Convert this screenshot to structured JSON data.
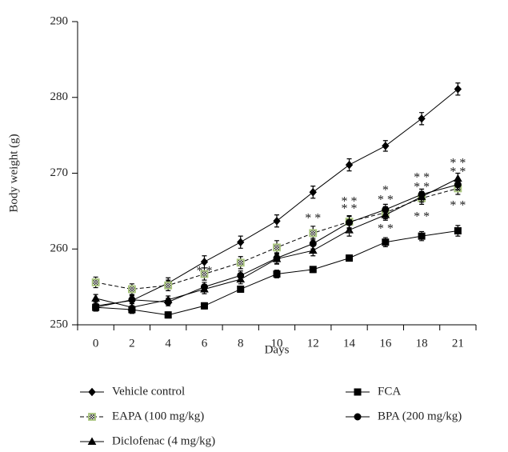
{
  "chart_data": {
    "type": "line",
    "x_label": "Days",
    "y_label": "Body weight (g)",
    "categories": [
      "0",
      "2",
      "4",
      "6",
      "8",
      "10",
      "12",
      "14",
      "16",
      "18",
      "21"
    ],
    "ylim": [
      250,
      290
    ],
    "yticks": [
      250,
      260,
      270,
      280,
      290
    ],
    "series": [
      {
        "name": "Vehicle control",
        "color": "#000000",
        "marker": "diamond",
        "marker_color": "#000000",
        "line_style": "solid",
        "values": [
          252.5,
          253.2,
          255.5,
          258.3,
          260.9,
          263.7,
          267.5,
          271.1,
          273.6,
          277.2,
          281.1
        ],
        "errors": [
          0.7,
          0.7,
          0.7,
          0.8,
          0.8,
          0.8,
          0.8,
          0.8,
          0.7,
          0.8,
          0.8
        ]
      },
      {
        "name": "EAPA (100 mg/kg)",
        "color": "#000000",
        "marker": "square-hatched",
        "marker_color": "#a8c47c",
        "line_style": "dashed",
        "values": [
          255.6,
          254.7,
          255.2,
          256.7,
          258.2,
          260.2,
          262.1,
          263.6,
          264.8,
          266.7,
          268.0
        ],
        "errors": [
          0.7,
          0.7,
          0.7,
          0.8,
          0.8,
          0.9,
          0.9,
          0.8,
          0.8,
          0.8,
          0.8
        ]
      },
      {
        "name": "Diclofenac (4 mg/kg)",
        "color": "#000000",
        "marker": "triangle",
        "marker_color": "#000000",
        "line_style": "solid",
        "values": [
          253.5,
          252.3,
          253.3,
          254.7,
          256.0,
          258.7,
          259.8,
          262.5,
          264.5,
          266.9,
          269.3
        ],
        "errors": [
          0.5,
          0.5,
          0.5,
          0.6,
          0.6,
          0.7,
          0.7,
          0.8,
          0.7,
          0.7,
          0.7
        ]
      },
      {
        "name": "FCA",
        "color": "#000000",
        "marker": "square",
        "marker_color": "#000000",
        "line_style": "solid",
        "values": [
          252.3,
          252.0,
          251.3,
          252.5,
          254.7,
          256.7,
          257.3,
          258.8,
          260.9,
          261.7,
          262.4
        ],
        "errors": [
          0.5,
          0.5,
          0.4,
          0.4,
          0.4,
          0.5,
          0.4,
          0.4,
          0.6,
          0.6,
          0.7
        ]
      },
      {
        "name": "BPA (200 mg/kg)",
        "color": "#000000",
        "marker": "circle",
        "marker_color": "#000000",
        "line_style": "solid",
        "values": [
          252.3,
          253.3,
          253.0,
          255.0,
          256.5,
          258.8,
          260.7,
          263.5,
          265.2,
          267.2,
          268.5
        ],
        "errors": [
          0.5,
          0.5,
          0.5,
          0.6,
          0.6,
          0.7,
          0.7,
          0.8,
          0.7,
          0.7,
          0.7
        ]
      }
    ],
    "annotations": [
      "* *",
      "* *",
      "* *",
      "* *",
      "*",
      "*",
      "* *",
      "* *",
      "* *",
      "* *",
      "* *",
      "* *",
      "* *",
      "* *",
      "* *"
    ]
  }
}
